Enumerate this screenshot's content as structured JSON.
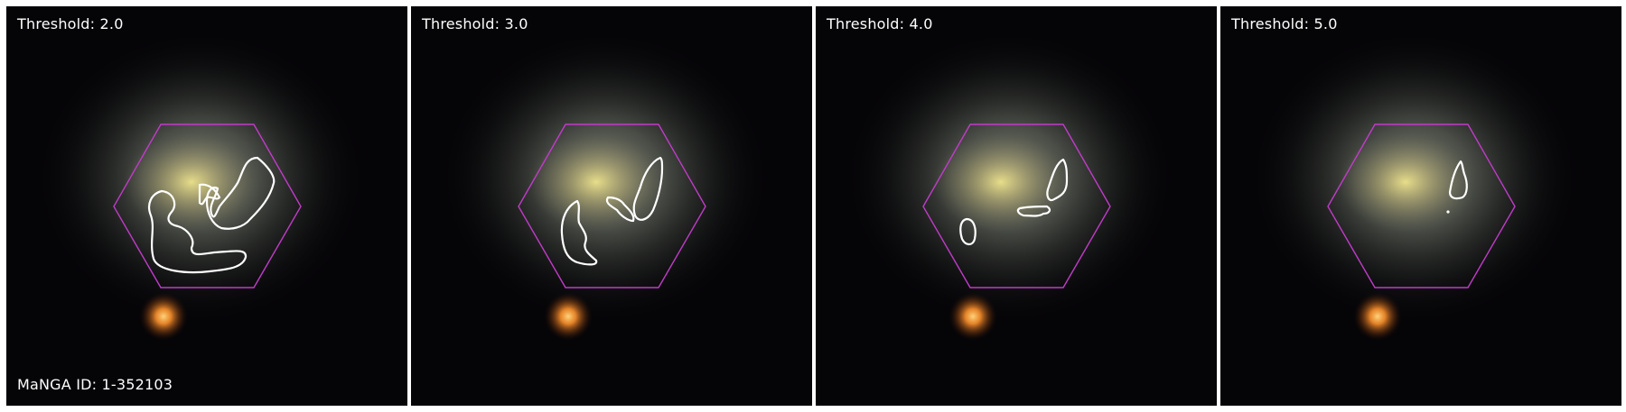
{
  "figure": {
    "manga_id": "MaNGA ID: 1-352103",
    "hexagon_color": "#c13bc9",
    "contour_color": "#ffffff",
    "panels": [
      {
        "label": "Threshold: 2.0"
      },
      {
        "label": "Threshold: 3.0"
      },
      {
        "label": "Threshold: 4.0"
      },
      {
        "label": "Threshold: 5.0"
      }
    ]
  }
}
